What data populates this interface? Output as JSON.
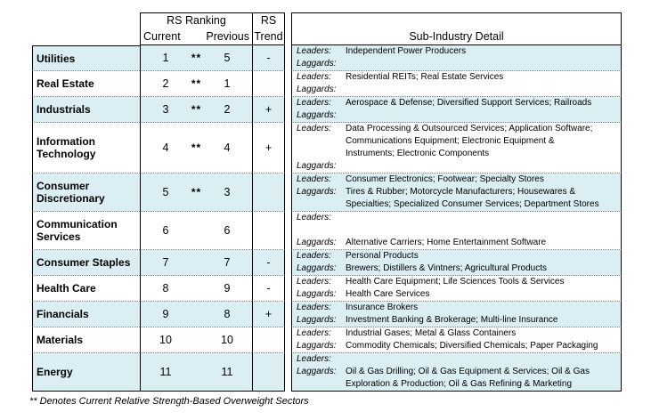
{
  "header": {
    "rs_ranking": "RS Ranking",
    "current": "Current",
    "previous": "Previous",
    "rs": "RS",
    "trend": "Trend",
    "sub_industry": "Sub-Industry Detail"
  },
  "footnote": "** Denotes Current Relative Strength-Based Overweight Sectors",
  "colors": {
    "row_highlight": "#daeef3",
    "row_plain": "#ffffff"
  },
  "rows": [
    {
      "sector": "Utilities",
      "current": "1",
      "overweight": "**",
      "previous": "5",
      "trend": "-",
      "highlight": true,
      "detail": [
        {
          "label": "Leaders:",
          "text": "Independent Power Producers"
        },
        {
          "label": "Laggards:",
          "text": ""
        }
      ]
    },
    {
      "sector": "Real Estate",
      "current": "2",
      "overweight": "**",
      "previous": "1",
      "trend": "",
      "highlight": false,
      "detail": [
        {
          "label": "Leaders:",
          "text": "Residential REITs; Real Estate Services"
        },
        {
          "label": "Laggards:",
          "text": ""
        }
      ]
    },
    {
      "sector": "Industrials",
      "current": "3",
      "overweight": "**",
      "previous": "2",
      "trend": "+",
      "highlight": true,
      "detail": [
        {
          "label": "Leaders:",
          "text": "Aerospace & Defense; Diversified Support Services; Railroads"
        },
        {
          "label": "Laggards:",
          "text": ""
        }
      ]
    },
    {
      "sector": "Information Technology",
      "current": "4",
      "overweight": "**",
      "previous": "4",
      "trend": "+",
      "highlight": false,
      "detail": [
        {
          "label": "Leaders:",
          "text": "Data Processing & Outsourced Services; Application Software;"
        },
        {
          "label": "",
          "text": "Communications Equipment; Electronic Equipment &"
        },
        {
          "label": "",
          "text": "Instruments; Electronic Components"
        },
        {
          "label": "Laggards:",
          "text": ""
        }
      ]
    },
    {
      "sector": "Consumer Discretionary",
      "current": "5",
      "overweight": "**",
      "previous": "3",
      "trend": "",
      "highlight": true,
      "detail": [
        {
          "label": "Leaders:",
          "text": "Consumer Electronics; Footwear; Specialty Stores"
        },
        {
          "label": "Laggards:",
          "text": "Tires & Rubber; Motorcycle Manufacturers; Housewares &"
        },
        {
          "label": "",
          "text": "Specialties; Specialized Consumer Services; Department Stores"
        }
      ]
    },
    {
      "sector": "Communication Services",
      "current": "6",
      "overweight": "",
      "previous": "6",
      "trend": "",
      "highlight": false,
      "detail": [
        {
          "label": "Leaders:",
          "text": ""
        },
        {
          "label": "",
          "text": ""
        },
        {
          "label": "Laggards:",
          "text": "Alternative Carriers; Home Entertainment Software"
        }
      ]
    },
    {
      "sector": "Consumer Staples",
      "current": "7",
      "overweight": "",
      "previous": "7",
      "trend": "-",
      "highlight": true,
      "detail": [
        {
          "label": "Leaders:",
          "text": "Personal Products"
        },
        {
          "label": "Laggards:",
          "text": "Brewers; Distillers & Vintners; Agricultural Products"
        }
      ]
    },
    {
      "sector": "Health Care",
      "current": "8",
      "overweight": "",
      "previous": "9",
      "trend": "-",
      "highlight": false,
      "detail": [
        {
          "label": "Leaders:",
          "text": "Health Care Equipment; Life Sciences Tools & Services"
        },
        {
          "label": "Laggards:",
          "text": "Health Care Services"
        }
      ]
    },
    {
      "sector": "Financials",
      "current": "9",
      "overweight": "",
      "previous": "8",
      "trend": "+",
      "highlight": true,
      "detail": [
        {
          "label": "Leaders:",
          "text": "Insurance Brokers"
        },
        {
          "label": "Laggards:",
          "text": "Investment Banking & Brokerage; Multi-line Insurance"
        }
      ]
    },
    {
      "sector": "Materials",
      "current": "10",
      "overweight": "",
      "previous": "10",
      "trend": "",
      "highlight": false,
      "detail": [
        {
          "label": "Leaders:",
          "text": "Industrial Gases; Metal & Glass Containers"
        },
        {
          "label": "Laggards:",
          "text": "Commodity Chemicals; Diversified Chemicals; Paper Packaging"
        }
      ]
    },
    {
      "sector": "Energy",
      "current": "11",
      "overweight": "",
      "previous": "11",
      "trend": "",
      "highlight": true,
      "detail": [
        {
          "label": "Leaders:",
          "text": ""
        },
        {
          "label": "Laggards:",
          "text": "Oil & Gas Drilling; Oil & Gas Equipment & Services; Oil & Gas"
        },
        {
          "label": "",
          "text": "Exploration & Production; Oil & Gas Refining & Marketing"
        }
      ]
    }
  ]
}
